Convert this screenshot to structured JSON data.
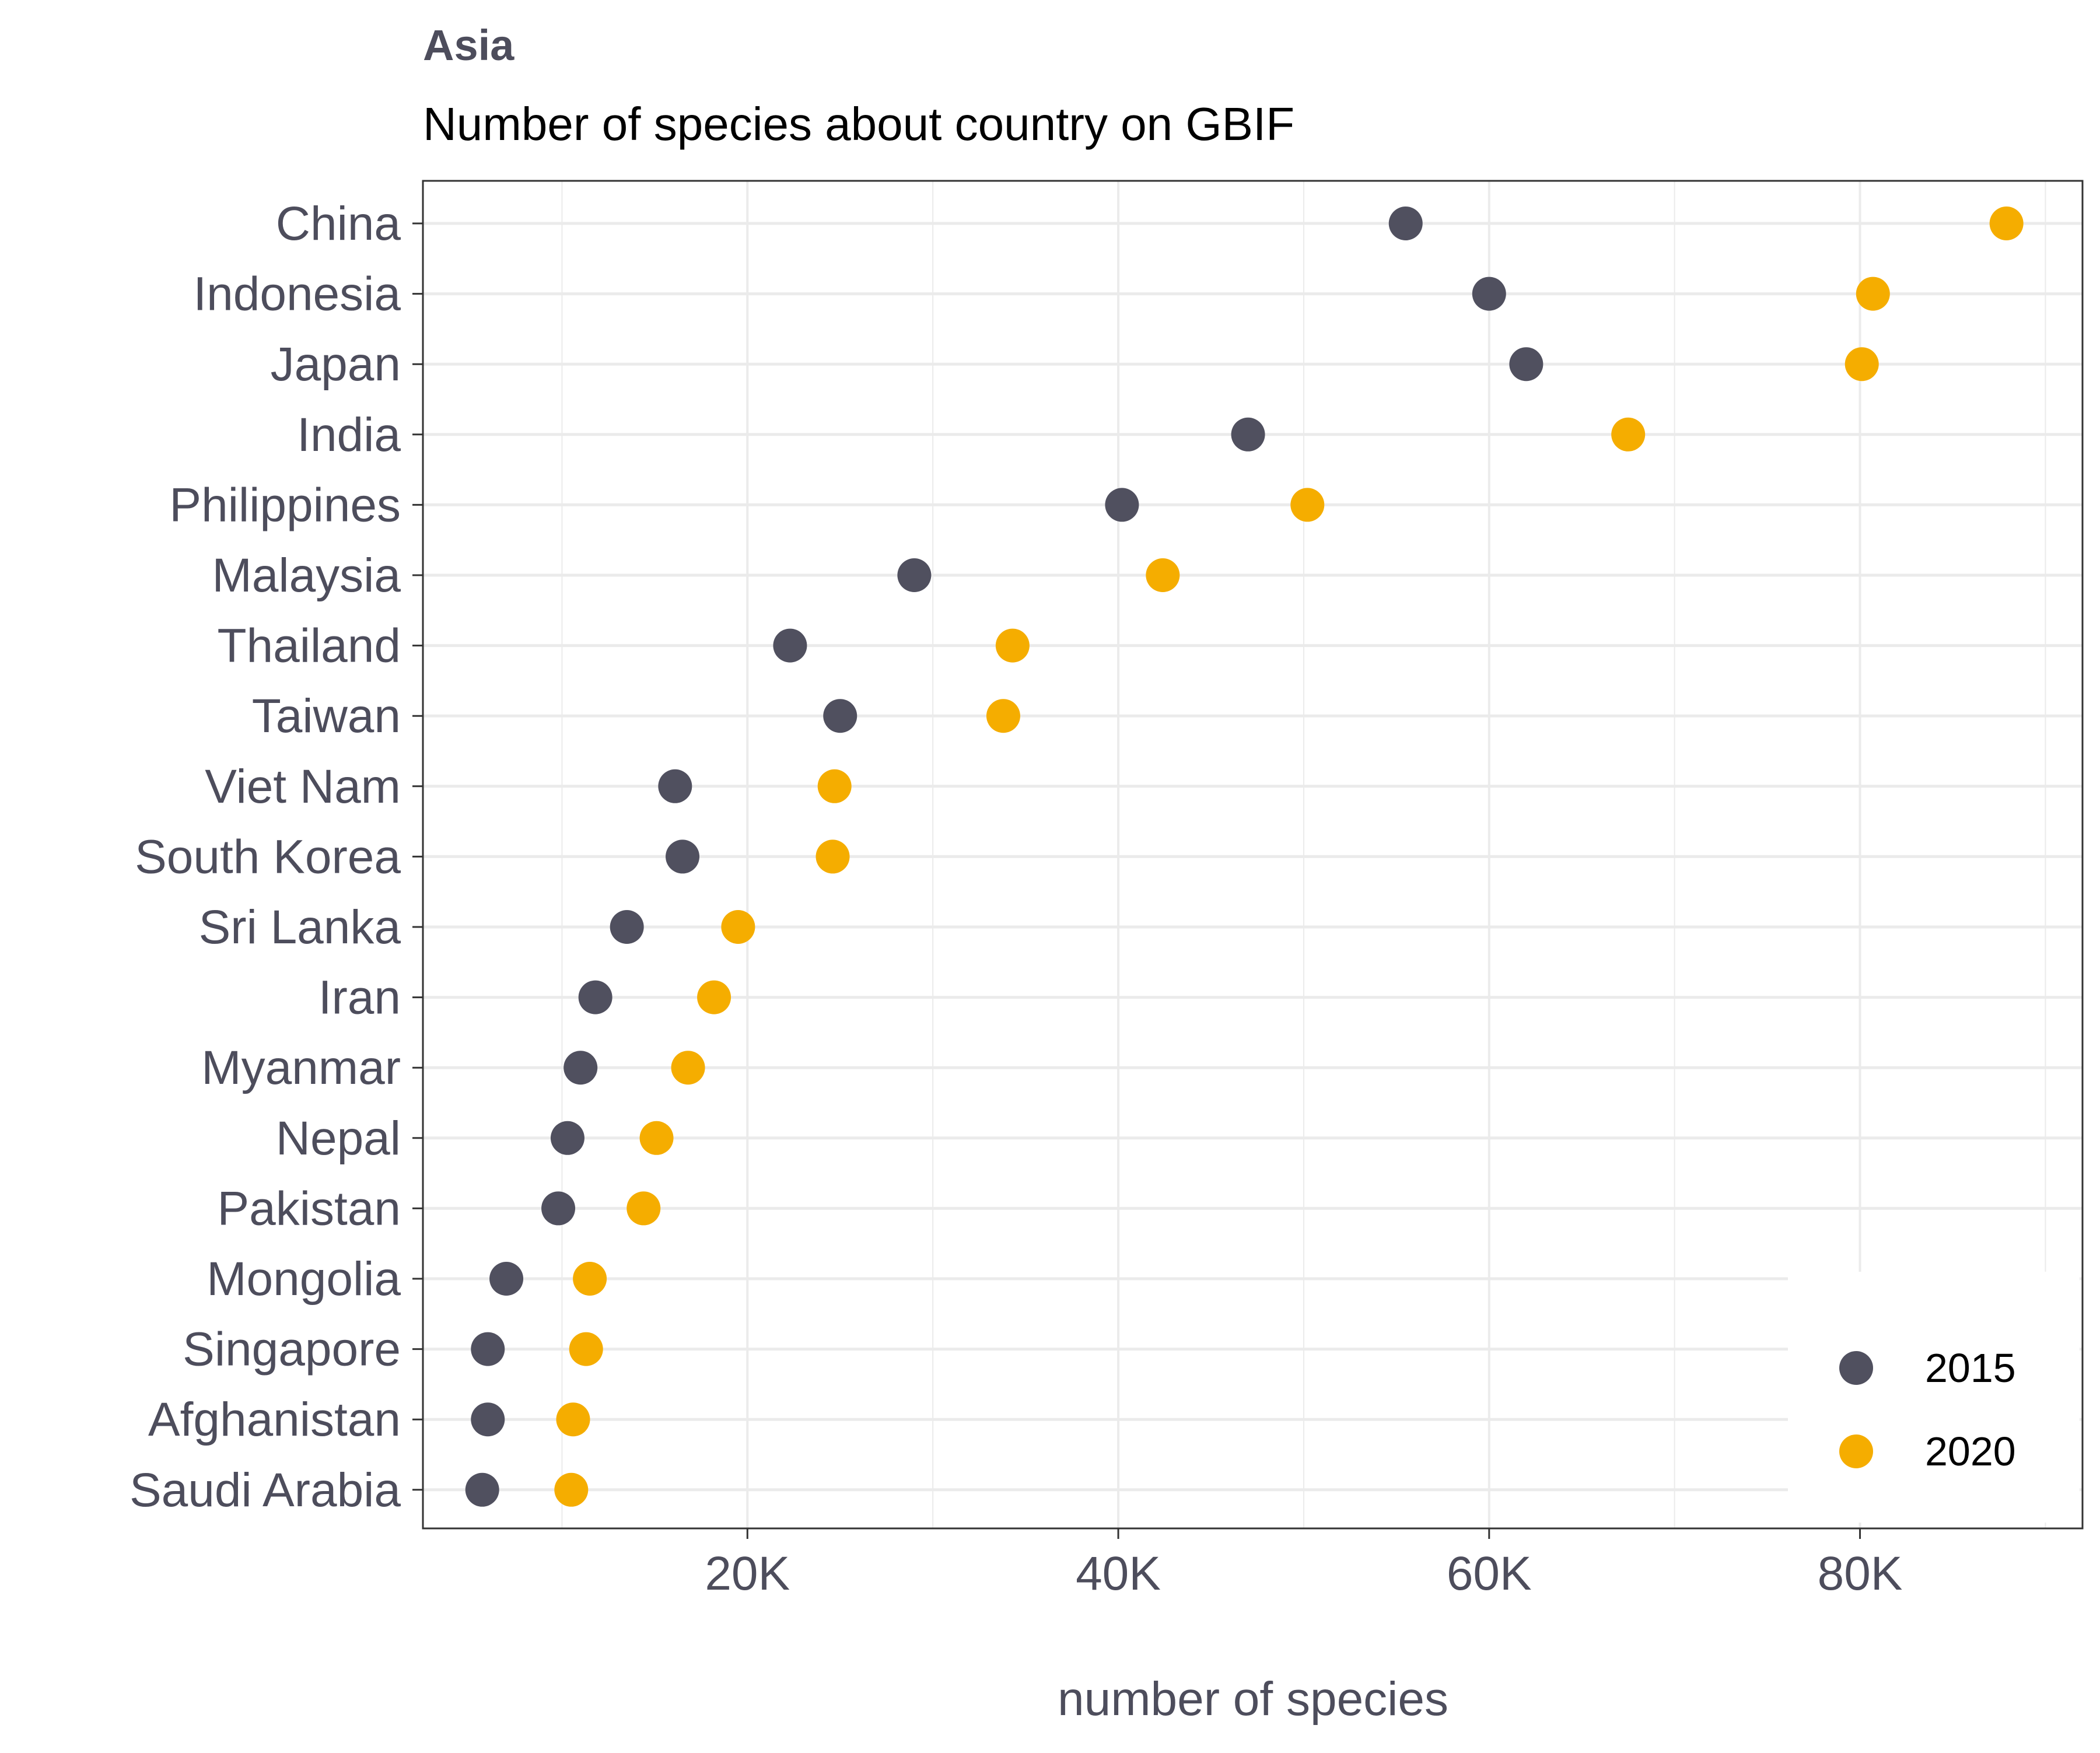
{
  "chart_data": {
    "type": "scatter",
    "title": "Asia",
    "subtitle": "Number of species about country on GBIF",
    "xlabel": "number of species",
    "ylabel": "",
    "xlim": [
      2500,
      92000
    ],
    "x_ticks": [
      20000,
      40000,
      60000,
      80000
    ],
    "x_tick_labels": [
      "20K",
      "40K",
      "60K",
      "80K"
    ],
    "categories": [
      "China",
      "Indonesia",
      "Japan",
      "India",
      "Philippines",
      "Malaysia",
      "Thailand",
      "Taiwan",
      "Viet Nam",
      "South Korea",
      "Sri Lanka",
      "Iran",
      "Myanmar",
      "Nepal",
      "Pakistan",
      "Mongolia",
      "Singapore",
      "Afghanistan",
      "Saudi Arabia"
    ],
    "series": [
      {
        "name": "2015",
        "color": "#50505f",
        "values": [
          55500,
          60000,
          62000,
          47000,
          40200,
          29000,
          22300,
          25000,
          16100,
          16500,
          13500,
          11800,
          11000,
          10300,
          9800,
          7000,
          6000,
          6000,
          5700
        ]
      },
      {
        "name": "2020",
        "color": "#f5ad00",
        "values": [
          87900,
          80700,
          80100,
          67500,
          50200,
          42400,
          34300,
          33800,
          24700,
          24600,
          19500,
          18200,
          16800,
          15100,
          14400,
          11500,
          11300,
          10600,
          10500
        ]
      }
    ],
    "grid": true,
    "legend_position": "bottom-right"
  }
}
